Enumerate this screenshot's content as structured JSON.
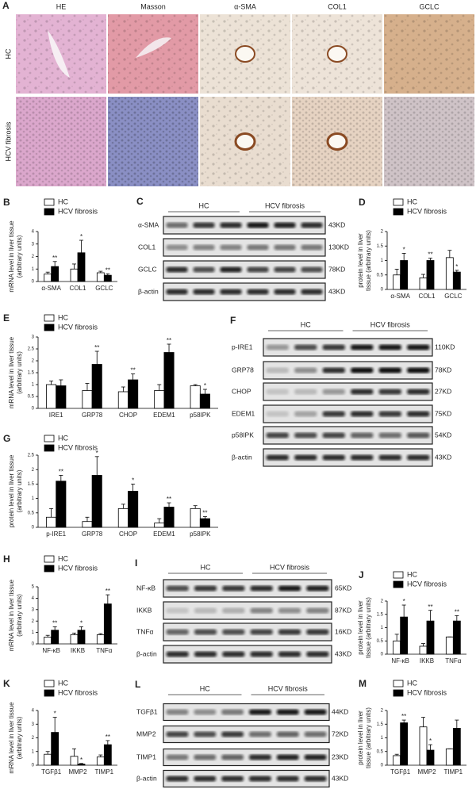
{
  "panel_a": {
    "letter": "A",
    "columns": [
      "HE",
      "Masson",
      "α-SMA",
      "COL1",
      "GCLC"
    ],
    "rows": [
      "HC",
      "HCV fibrosis"
    ]
  },
  "chart_data": [
    {
      "type": "bar",
      "letter": "B",
      "ylabel": [
        "mRNA level in liver tissue",
        "(arbitrary units)"
      ],
      "categories": [
        "α-SMA",
        "COL1",
        "GCLC"
      ],
      "ylim": [
        0,
        4
      ],
      "yticks": [
        0,
        1,
        2,
        3,
        4
      ],
      "series": [
        {
          "name": "HC",
          "color": "#ffffff",
          "values": [
            0.6,
            1.0,
            0.7
          ],
          "errors": [
            0.15,
            0.4,
            0.12
          ],
          "significance": [
            null,
            null,
            null
          ]
        },
        {
          "name": "HCV fibrosis",
          "color": "#000000",
          "values": [
            1.2,
            2.3,
            0.5
          ],
          "errors": [
            0.4,
            1.0,
            0.12
          ],
          "significance": [
            "**",
            "*",
            "**"
          ]
        }
      ]
    },
    {
      "type": "bar",
      "letter": "D",
      "ylabel": [
        "protein level in liver",
        "tissue (arbitrary units)"
      ],
      "categories": [
        "α-SMA",
        "COL1",
        "GCLC"
      ],
      "ylim": [
        0,
        2
      ],
      "yticks": [
        0,
        0.5,
        1,
        1.5,
        2
      ],
      "series": [
        {
          "name": "HC",
          "color": "#ffffff",
          "values": [
            0.5,
            0.4,
            1.1
          ],
          "errors": [
            0.2,
            0.12,
            0.25
          ],
          "significance": [
            null,
            null,
            null
          ]
        },
        {
          "name": "HCV fibrosis",
          "color": "#000000",
          "values": [
            1.0,
            1.0,
            0.6
          ],
          "errors": [
            0.25,
            0.08,
            0.06
          ],
          "significance": [
            "*",
            "**",
            "*"
          ]
        }
      ]
    },
    {
      "type": "bar",
      "letter": "E",
      "ylabel": [
        "mRNA level in liver tissue",
        "(arbitrary units)"
      ],
      "categories": [
        "IRE1",
        "GRP78",
        "CHOP",
        "EDEM1",
        "p58IPK"
      ],
      "ylim": [
        0,
        3
      ],
      "yticks": [
        0,
        0.5,
        1,
        1.5,
        2,
        2.5,
        3
      ],
      "series": [
        {
          "name": "HC",
          "color": "#ffffff",
          "values": [
            1.0,
            0.75,
            0.7,
            0.75,
            0.95
          ],
          "errors": [
            0.15,
            0.3,
            0.2,
            0.25,
            0.05
          ],
          "significance": [
            null,
            null,
            null,
            null,
            null
          ]
        },
        {
          "name": "HCV fibrosis",
          "color": "#000000",
          "values": [
            0.95,
            1.85,
            1.2,
            2.35,
            0.6
          ],
          "errors": [
            0.25,
            0.55,
            0.25,
            0.35,
            0.2
          ],
          "significance": [
            null,
            "**",
            "**",
            "**",
            "*"
          ]
        }
      ]
    },
    {
      "type": "bar",
      "letter": "G",
      "ylabel": [
        "protein level in liver tissue",
        "(arbitrary units)"
      ],
      "categories": [
        "p-IRE1",
        "GRP78",
        "CHOP",
        "EDEM1",
        "p58IPK"
      ],
      "ylim": [
        0,
        2.5
      ],
      "yticks": [
        0,
        0.5,
        1,
        1.5,
        2,
        2.5
      ],
      "series": [
        {
          "name": "HC",
          "color": "#ffffff",
          "values": [
            0.35,
            0.2,
            0.65,
            0.15,
            0.65
          ],
          "errors": [
            0.3,
            0.15,
            0.15,
            0.15,
            0.1
          ],
          "significance": [
            null,
            null,
            null,
            null,
            null
          ]
        },
        {
          "name": "HCV fibrosis",
          "color": "#000000",
          "values": [
            1.6,
            1.8,
            1.25,
            0.7,
            0.3
          ],
          "errors": [
            0.2,
            0.65,
            0.25,
            0.15,
            0.07
          ],
          "significance": [
            "**",
            "*",
            "*",
            "**",
            "**"
          ]
        }
      ]
    },
    {
      "type": "bar",
      "letter": "H",
      "ylabel": [
        "mRNA level in liver tissue",
        "(arbitrary units)"
      ],
      "categories": [
        "NF-κB",
        "IKKB",
        "TNFα"
      ],
      "ylim": [
        0,
        5
      ],
      "yticks": [
        0,
        1,
        2,
        3,
        4,
        5
      ],
      "series": [
        {
          "name": "HC",
          "color": "#ffffff",
          "values": [
            0.6,
            0.8,
            0.8
          ],
          "errors": [
            0.15,
            0.15,
            0.1
          ],
          "significance": [
            null,
            null,
            null
          ]
        },
        {
          "name": "HCV fibrosis",
          "color": "#000000",
          "values": [
            1.2,
            1.2,
            3.5
          ],
          "errors": [
            0.3,
            0.3,
            0.8
          ],
          "significance": [
            "**",
            "*",
            "**"
          ]
        }
      ]
    },
    {
      "type": "bar",
      "letter": "J",
      "ylabel": [
        "protein level in liver",
        "tissue (arbitrary units)"
      ],
      "categories": [
        "NF-κB",
        "IKKB",
        "TNFα"
      ],
      "ylim": [
        0,
        2
      ],
      "yticks": [
        0,
        0.5,
        1,
        1.5,
        2
      ],
      "series": [
        {
          "name": "HC",
          "color": "#ffffff",
          "values": [
            0.5,
            0.3,
            0.65
          ],
          "errors": [
            0.25,
            0.1,
            0.0
          ],
          "significance": [
            null,
            null,
            null
          ]
        },
        {
          "name": "HCV fibrosis",
          "color": "#000000",
          "values": [
            1.4,
            1.25,
            1.25
          ],
          "errors": [
            0.45,
            0.4,
            0.2
          ],
          "significance": [
            "*",
            "**",
            "**"
          ]
        }
      ]
    },
    {
      "type": "bar",
      "letter": "K",
      "ylabel": [
        "mRNA level in liver tissue",
        "(arbitrary units)"
      ],
      "categories": [
        "TGFβ1",
        "MMP2",
        "TIMP1"
      ],
      "ylim": [
        0,
        4
      ],
      "yticks": [
        0,
        1,
        2,
        3,
        4
      ],
      "series": [
        {
          "name": "HC",
          "color": "#ffffff",
          "values": [
            0.8,
            0.65,
            0.6
          ],
          "errors": [
            0.2,
            0.55,
            0.15
          ],
          "significance": [
            null,
            null,
            null
          ]
        },
        {
          "name": "HCV fibrosis",
          "color": "#000000",
          "values": [
            2.4,
            0.08,
            1.5
          ],
          "errors": [
            1.1,
            0.05,
            0.3
          ],
          "significance": [
            "*",
            "*",
            "**"
          ]
        }
      ]
    },
    {
      "type": "bar",
      "letter": "M",
      "ylabel": [
        "protein level in liver",
        "tissue (arbitrary units)"
      ],
      "categories": [
        "TGFβ1",
        "MMP2",
        "TIMP1"
      ],
      "ylim": [
        0,
        2
      ],
      "yticks": [
        0,
        0.5,
        1,
        1.5,
        2
      ],
      "series": [
        {
          "name": "HC",
          "color": "#ffffff",
          "values": [
            0.35,
            1.4,
            0.6
          ],
          "errors": [
            0.05,
            0.35,
            0.0
          ],
          "significance": [
            null,
            null,
            null
          ]
        },
        {
          "name": "HCV fibrosis",
          "color": "#000000",
          "values": [
            1.55,
            0.55,
            1.35
          ],
          "errors": [
            0.1,
            0.2,
            0.3
          ],
          "significance": [
            "**",
            "*",
            null
          ]
        }
      ]
    }
  ],
  "blots": [
    {
      "letter": "C",
      "groups": [
        "HC",
        "HCV fibrosis"
      ],
      "rows": [
        {
          "protein": "α-SMA",
          "size": "43KD"
        },
        {
          "protein": "COL1",
          "size": "130KD"
        },
        {
          "protein": "GCLC",
          "size": "78KD"
        },
        {
          "protein": "β-actin",
          "size": "43KD"
        }
      ]
    },
    {
      "letter": "F",
      "groups": [
        "HC",
        "HCV fibrosis"
      ],
      "rows": [
        {
          "protein": "p-IRE1",
          "size": "110KD"
        },
        {
          "protein": "GRP78",
          "size": "78KD"
        },
        {
          "protein": "CHOP",
          "size": "27KD"
        },
        {
          "protein": "EDEM1",
          "size": "75KD"
        },
        {
          "protein": "p58IPK",
          "size": "54KD"
        },
        {
          "protein": "β-actin",
          "size": "43KD"
        }
      ]
    },
    {
      "letter": "I",
      "groups": [
        "HC",
        "HCV fibrosis"
      ],
      "rows": [
        {
          "protein": "NF-κB",
          "size": "65KD"
        },
        {
          "protein": "IKKB",
          "size": "87KD"
        },
        {
          "protein": "TNFα",
          "size": "16KD"
        },
        {
          "protein": "β-actin",
          "size": "43KD"
        }
      ]
    },
    {
      "letter": "L",
      "groups": [
        "HC",
        "HCV fibrosis"
      ],
      "rows": [
        {
          "protein": "TGFβ1",
          "size": "44KD"
        },
        {
          "protein": "MMP2",
          "size": "72KD"
        },
        {
          "protein": "TIMP1",
          "size": "23KD"
        },
        {
          "protein": "β-actin",
          "size": "43KD"
        }
      ]
    }
  ]
}
